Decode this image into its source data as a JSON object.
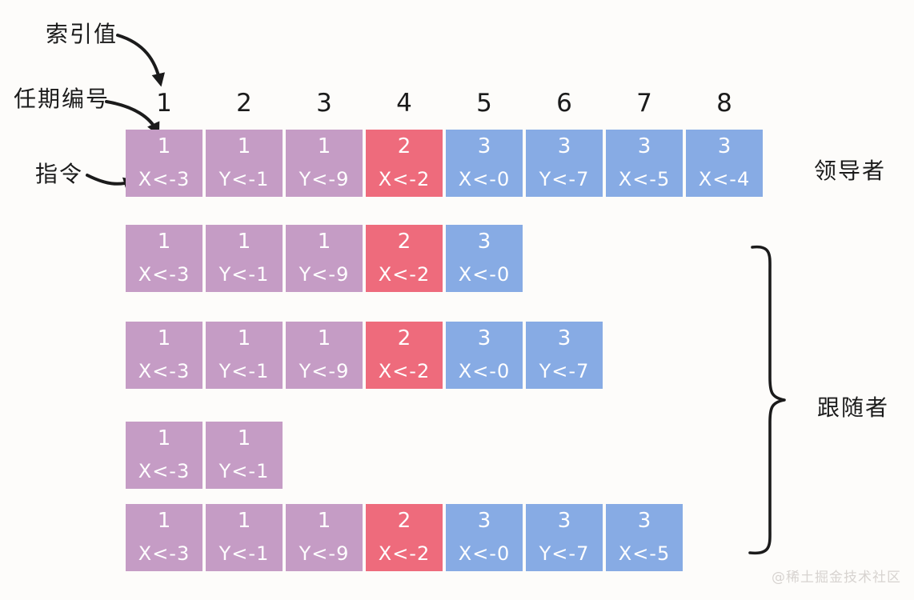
{
  "labels": {
    "index_pointer": "索引值",
    "term_pointer": "任期编号",
    "command_pointer": "指令",
    "leader": "领导者",
    "followers": "跟随者"
  },
  "index_row": [
    "1",
    "2",
    "3",
    "4",
    "5",
    "6",
    "7",
    "8"
  ],
  "colors": {
    "term1": "#c59cc5",
    "term2": "#ee6b7c",
    "term3": "#87abe4",
    "ink": "#1b1b1b",
    "cell_text": "#ffffff",
    "watermark": "#d7d3d0"
  },
  "logs": {
    "leader": [
      {
        "term": "1",
        "cmd": "X<-3"
      },
      {
        "term": "1",
        "cmd": "Y<-1"
      },
      {
        "term": "1",
        "cmd": "Y<-9"
      },
      {
        "term": "2",
        "cmd": "X<-2"
      },
      {
        "term": "3",
        "cmd": "X<-0"
      },
      {
        "term": "3",
        "cmd": "Y<-7"
      },
      {
        "term": "3",
        "cmd": "X<-5"
      },
      {
        "term": "3",
        "cmd": "X<-4"
      }
    ],
    "followers": [
      [
        {
          "term": "1",
          "cmd": "X<-3"
        },
        {
          "term": "1",
          "cmd": "Y<-1"
        },
        {
          "term": "1",
          "cmd": "Y<-9"
        },
        {
          "term": "2",
          "cmd": "X<-2"
        },
        {
          "term": "3",
          "cmd": "X<-0"
        }
      ],
      [
        {
          "term": "1",
          "cmd": "X<-3"
        },
        {
          "term": "1",
          "cmd": "Y<-1"
        },
        {
          "term": "1",
          "cmd": "Y<-9"
        },
        {
          "term": "2",
          "cmd": "X<-2"
        },
        {
          "term": "3",
          "cmd": "X<-0"
        },
        {
          "term": "3",
          "cmd": "Y<-7"
        }
      ],
      [
        {
          "term": "1",
          "cmd": "X<-3"
        },
        {
          "term": "1",
          "cmd": "Y<-1"
        }
      ],
      [
        {
          "term": "1",
          "cmd": "X<-3"
        },
        {
          "term": "1",
          "cmd": "Y<-1"
        },
        {
          "term": "1",
          "cmd": "Y<-9"
        },
        {
          "term": "2",
          "cmd": "X<-2"
        },
        {
          "term": "3",
          "cmd": "X<-0"
        },
        {
          "term": "3",
          "cmd": "Y<-7"
        },
        {
          "term": "3",
          "cmd": "X<-5"
        }
      ]
    ]
  },
  "watermark": "@稀土掘金技术社区"
}
